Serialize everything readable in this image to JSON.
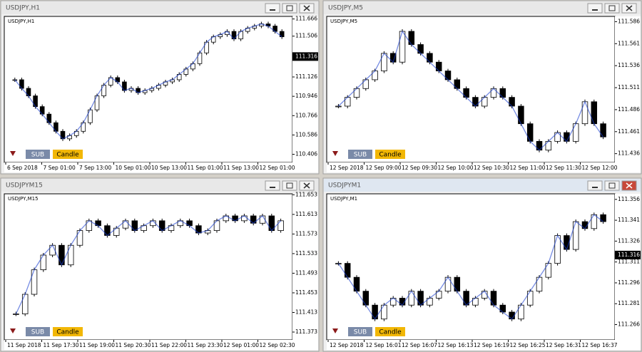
{
  "buttons": [
    "SUB",
    "Candle"
  ],
  "windows": [
    {
      "title": "USDJPY,H1",
      "label": "USDJPY,H1",
      "ylim": [
        110.33,
        111.69
      ],
      "yticks": [
        111.666,
        111.506,
        111.126,
        110.946,
        110.766,
        110.586,
        110.406
      ],
      "current": 111.316,
      "xticks": [
        "6 Sep 2018",
        "7 Sep 01:00",
        "7 Sep 13:00",
        "10 Sep 01:00",
        "10 Sep 13:00",
        "11 Sep 01:00",
        "11 Sep 13:00",
        "12 Sep 01:00"
      ],
      "closes": [
        111.1,
        111.02,
        110.95,
        110.85,
        110.78,
        110.7,
        110.62,
        110.55,
        110.58,
        110.62,
        110.7,
        110.82,
        110.95,
        111.05,
        111.12,
        111.08,
        111.0,
        111.02,
        110.98,
        111.0,
        111.02,
        111.05,
        111.08,
        111.1,
        111.15,
        111.2,
        111.25,
        111.35,
        111.45,
        111.5,
        111.52,
        111.55,
        111.48,
        111.55,
        111.58,
        111.6,
        111.62,
        111.6,
        111.55,
        111.5
      ]
    },
    {
      "title": "USDJPY,M5",
      "label": "USDJPY,M5",
      "ylim": [
        111.426,
        111.592
      ],
      "yticks": [
        111.586,
        111.561,
        111.536,
        111.511,
        111.486,
        111.461,
        111.436
      ],
      "xticks": [
        "12 Sep 2018",
        "12 Sep 09:00",
        "12 Sep 09:30",
        "12 Sep 10:00",
        "12 Sep 10:30",
        "12 Sep 11:00",
        "12 Sep 11:30",
        "12 Sep 12:00"
      ],
      "closes": [
        111.49,
        111.5,
        111.51,
        111.52,
        111.53,
        111.55,
        111.54,
        111.575,
        111.56,
        111.55,
        111.54,
        111.53,
        111.52,
        111.51,
        111.5,
        111.49,
        111.5,
        111.51,
        111.5,
        111.49,
        111.47,
        111.45,
        111.44,
        111.45,
        111.46,
        111.45,
        111.47,
        111.495,
        111.47,
        111.455
      ]
    },
    {
      "title": "USDJPYM15",
      "label": "USDJPY,M15",
      "ylim": [
        111.357,
        111.655
      ],
      "yticks": [
        111.653,
        111.613,
        111.573,
        111.533,
        111.493,
        111.453,
        111.413,
        111.373
      ],
      "xticks": [
        "11 Sep 2018",
        "11 Sep 17:30",
        "11 Sep 19:00",
        "11 Sep 20:30",
        "11 Sep 22:00",
        "11 Sep 23:30",
        "12 Sep 01:00",
        "12 Sep 02:30"
      ],
      "closes": [
        111.41,
        111.45,
        111.5,
        111.53,
        111.55,
        111.51,
        111.55,
        111.58,
        111.6,
        111.59,
        111.57,
        111.585,
        111.6,
        111.58,
        111.59,
        111.6,
        111.58,
        111.59,
        111.6,
        111.59,
        111.575,
        111.58,
        111.6,
        111.61,
        111.6,
        111.61,
        111.595,
        111.61,
        111.58,
        111.6
      ]
    },
    {
      "title": "USDJPYM1",
      "label": "USDJPY,M1",
      "ylim": [
        111.255,
        111.36
      ],
      "yticks": [
        111.356,
        111.341,
        111.326,
        111.311,
        111.296,
        111.281,
        111.266
      ],
      "current": 111.316,
      "xticks": [
        "12 Sep 2018",
        "12 Sep 16:01",
        "12 Sep 16:07",
        "12 Sep 16:13",
        "12 Sep 16:19",
        "12 Sep 16:25",
        "12 Sep 16:31",
        "12 Sep 16:37"
      ],
      "closes": [
        111.31,
        111.3,
        111.29,
        111.28,
        111.27,
        111.28,
        111.285,
        111.28,
        111.29,
        111.28,
        111.285,
        111.29,
        111.3,
        111.29,
        111.28,
        111.285,
        111.29,
        111.28,
        111.275,
        111.27,
        111.28,
        111.29,
        111.3,
        111.31,
        111.33,
        111.32,
        111.34,
        111.335,
        111.345,
        111.34
      ]
    }
  ]
}
